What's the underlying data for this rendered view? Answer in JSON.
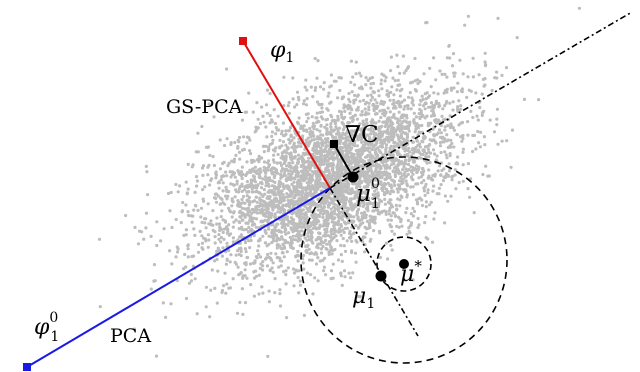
{
  "labels": {
    "phi1": "φ",
    "phi1_sub": "1",
    "gs_pca": "GS-PCA",
    "grad_c": "∇C",
    "mu1_0": "μ",
    "mu1_0_sub": "1",
    "mu1_0_sup": "0",
    "mu_star": "μ",
    "mu_star_sup": "*",
    "mu1": "μ",
    "mu1_sub": "1",
    "phi1_0": "φ",
    "phi1_0_sub": "1",
    "phi1_0_sup": "0",
    "pca": "PCA"
  },
  "colors": {
    "points": "#bdbdbd",
    "gs_pca": "#e01010",
    "pca": "#1a1ae6",
    "axis": "#000000"
  },
  "scatter": {
    "count": 4200
  }
}
